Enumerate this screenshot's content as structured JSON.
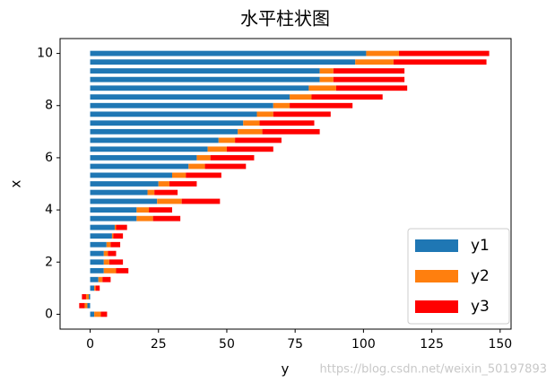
{
  "chart_data": {
    "type": "barh_stacked",
    "title": "水平柱状图",
    "xlabel": "y",
    "ylabel": "x",
    "x": [
      0,
      0.33,
      0.67,
      1,
      1.33,
      1.67,
      2,
      2.33,
      2.67,
      3,
      3.33,
      3.67,
      4,
      4.33,
      4.67,
      5,
      5.33,
      5.67,
      6,
      6.33,
      6.67,
      7,
      7.33,
      7.67,
      8,
      8.33,
      8.67,
      9,
      9.33,
      9.67,
      10
    ],
    "series": [
      {
        "name": "y1",
        "color": "#1f77b4",
        "values": [
          1.5,
          -1,
          -0.5,
          1.5,
          3,
          5,
          5,
          5,
          6,
          8,
          9,
          17,
          17,
          24.5,
          21,
          25,
          30,
          36,
          39,
          43,
          47,
          54,
          56,
          61,
          67,
          73,
          80,
          84,
          84,
          97,
          101
        ]
      },
      {
        "name": "y2",
        "color": "#ff7f0e",
        "values": [
          2.4,
          -1,
          -1,
          0.5,
          1.5,
          4.5,
          2,
          1.5,
          1.5,
          0.5,
          0.5,
          6,
          4.5,
          9,
          2.5,
          4,
          5,
          6,
          5,
          7,
          6,
          9,
          6,
          6,
          6,
          8,
          10,
          5,
          5,
          14,
          12
        ]
      },
      {
        "name": "y3",
        "color": "#ff0000",
        "values": [
          2.3,
          -2,
          -1.5,
          1.5,
          3,
          4.5,
          5,
          3,
          3.5,
          3.5,
          4,
          10,
          8.5,
          14,
          8.5,
          10,
          13,
          15,
          16,
          17,
          17,
          21,
          20,
          21,
          23,
          26,
          26,
          26,
          26,
          34,
          33
        ]
      }
    ],
    "xlim": [
      -11,
      154
    ],
    "ylim": [
      -0.57,
      10.57
    ],
    "xticks": [
      0,
      25,
      50,
      75,
      100,
      125,
      150
    ],
    "yticks": [
      0,
      2,
      4,
      6,
      8,
      10
    ],
    "legend": "lower right",
    "watermark": "https://blog.csdn.net/weixin_50197893"
  }
}
